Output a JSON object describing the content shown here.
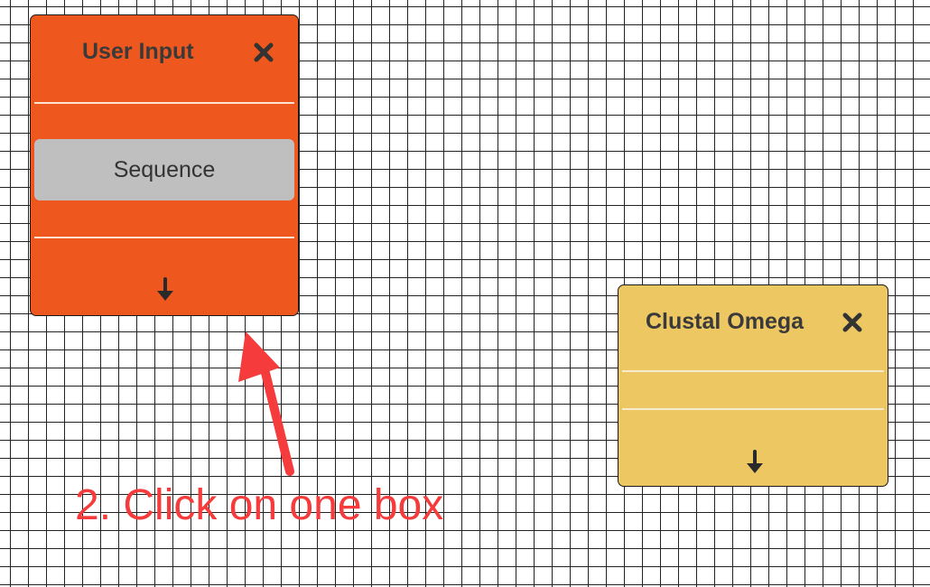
{
  "colors": {
    "user_input_box": "#ee571d",
    "clustal_box": "#edc762",
    "port_fill": "#bfbfbf",
    "annotation": "#f53b3b",
    "grid_line": "#222222"
  },
  "nodes": {
    "user_input": {
      "title": "User Input",
      "close_icon": "close-icon",
      "ports": [
        "Sequence"
      ],
      "output_icon": "down-arrow-icon"
    },
    "clustal_omega": {
      "title": "Clustal Omega",
      "close_icon": "close-icon",
      "ports": [],
      "output_icon": "down-arrow-icon"
    }
  },
  "annotation": {
    "text": "2. Click on one box",
    "icon": "red-arrow-icon"
  }
}
